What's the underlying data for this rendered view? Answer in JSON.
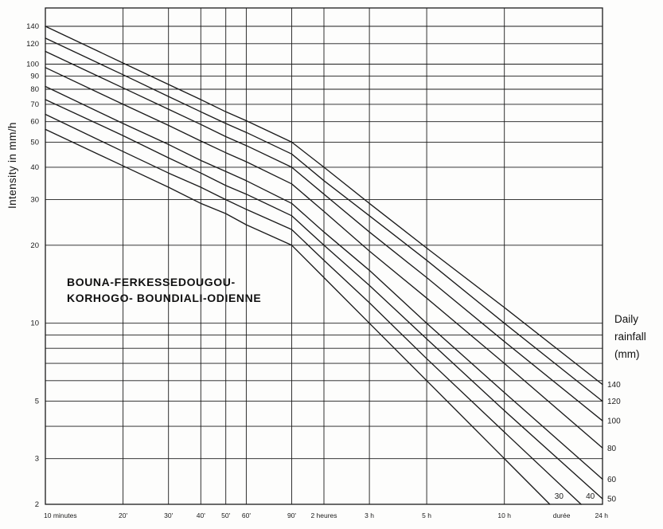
{
  "page": {
    "background": "#fdfdfc",
    "ink_color": "#1b1b1b"
  },
  "chart_data": {
    "type": "line",
    "title_annotation": [
      "BOUNA-FERKESSEDOUGOU-",
      "KORHOGO- BOUNDIALI-ODIENNE"
    ],
    "ylabel": "Intensity in mm/h",
    "right_axis_label": [
      "Daily",
      "rainfall",
      "(mm)"
    ],
    "x_axis_note": "durée",
    "x_axis_note_minutes": 1000,
    "x_scale": "log",
    "y_scale": "log",
    "x_range_minutes": [
      10,
      1440
    ],
    "y_range": [
      2,
      140
    ],
    "grid": true,
    "legend_position": "curve-end-labels",
    "x_ticks": [
      {
        "minutes": 10,
        "label": "10 minutes"
      },
      {
        "minutes": 20,
        "label": "20'"
      },
      {
        "minutes": 30,
        "label": "30'"
      },
      {
        "minutes": 40,
        "label": "40'"
      },
      {
        "minutes": 50,
        "label": "50'"
      },
      {
        "minutes": 60,
        "label": "60'"
      },
      {
        "minutes": 90,
        "label": "90'"
      },
      {
        "minutes": 120,
        "label": "2 heures"
      },
      {
        "minutes": 180,
        "label": "3 h"
      },
      {
        "minutes": 300,
        "label": "5 h"
      },
      {
        "minutes": 600,
        "label": "10 h"
      },
      {
        "minutes": 1440,
        "label": "24 h"
      }
    ],
    "y_ticks_labeled": [
      140,
      120,
      100,
      90,
      80,
      70,
      60,
      50,
      40,
      30,
      20,
      10,
      5,
      3,
      2
    ],
    "y_gridlines": [
      140,
      120,
      100,
      90,
      80,
      70,
      60,
      50,
      40,
      30,
      20,
      10,
      9,
      8,
      7,
      6,
      5,
      4,
      3,
      2
    ],
    "series": [
      {
        "daily_rainfall_mm": 140,
        "label": "140",
        "label_side": "right",
        "t_minutes": [
          10,
          20,
          30,
          40,
          50,
          60,
          90,
          120,
          180,
          300,
          600,
          1440
        ],
        "intensity_mm_h": [
          140,
          101,
          83.5,
          73,
          65.5,
          60.5,
          50,
          40,
          29,
          19.5,
          11.5,
          5.8
        ]
      },
      {
        "daily_rainfall_mm": 120,
        "label": "120",
        "label_side": "right",
        "t_minutes": [
          10,
          20,
          30,
          40,
          50,
          60,
          90,
          120,
          180,
          300,
          600,
          1440
        ],
        "intensity_mm_h": [
          126,
          91,
          75,
          65.5,
          59,
          54.5,
          45,
          35.5,
          26,
          17.5,
          10,
          5.0
        ]
      },
      {
        "daily_rainfall_mm": 100,
        "label": "100",
        "label_side": "right",
        "t_minutes": [
          10,
          20,
          30,
          40,
          50,
          60,
          90,
          120,
          180,
          300,
          600,
          1440
        ],
        "intensity_mm_h": [
          112,
          81,
          67,
          58.5,
          52.5,
          48.5,
          40,
          31.5,
          22.5,
          15,
          8.5,
          4.2
        ]
      },
      {
        "daily_rainfall_mm": 80,
        "label": "80",
        "label_side": "right",
        "t_minutes": [
          10,
          20,
          30,
          40,
          50,
          60,
          90,
          120,
          180,
          300,
          600,
          1440
        ],
        "intensity_mm_h": [
          97,
          70,
          58,
          50.5,
          45.5,
          42,
          34.5,
          27,
          19,
          12.5,
          7.0,
          3.3
        ]
      },
      {
        "daily_rainfall_mm": 60,
        "label": "60",
        "label_side": "right",
        "t_minutes": [
          10,
          20,
          30,
          40,
          50,
          60,
          90,
          120,
          180,
          300,
          600,
          1440
        ],
        "intensity_mm_h": [
          82,
          59,
          49,
          42.5,
          38.5,
          35.5,
          29,
          22.5,
          16,
          10,
          5.4,
          2.5
        ]
      },
      {
        "daily_rainfall_mm": 50,
        "label": "50",
        "label_side": "right",
        "t_minutes": [
          10,
          20,
          30,
          40,
          50,
          60,
          90,
          120,
          180,
          300,
          600,
          1440
        ],
        "intensity_mm_h": [
          73,
          53,
          43.5,
          38,
          34,
          31.5,
          26,
          20,
          14,
          8.7,
          4.6,
          2.1
        ]
      },
      {
        "daily_rainfall_mm": 40,
        "label": "40",
        "label_side": "bottom",
        "t_minutes": [
          10,
          20,
          30,
          40,
          50,
          60,
          90,
          120,
          180,
          300,
          600,
          1190
        ],
        "intensity_mm_h": [
          64,
          46,
          38,
          33.5,
          30,
          27.5,
          23,
          17.5,
          12,
          7.3,
          3.8,
          2.0
        ]
      },
      {
        "daily_rainfall_mm": 30,
        "label": "30",
        "label_side": "bottom",
        "t_minutes": [
          10,
          20,
          30,
          40,
          50,
          60,
          90,
          120,
          180,
          300,
          600,
          900
        ],
        "intensity_mm_h": [
          56,
          40.5,
          33.5,
          29,
          26.5,
          24,
          20,
          15,
          10,
          6.0,
          3.0,
          2.0
        ]
      }
    ]
  }
}
